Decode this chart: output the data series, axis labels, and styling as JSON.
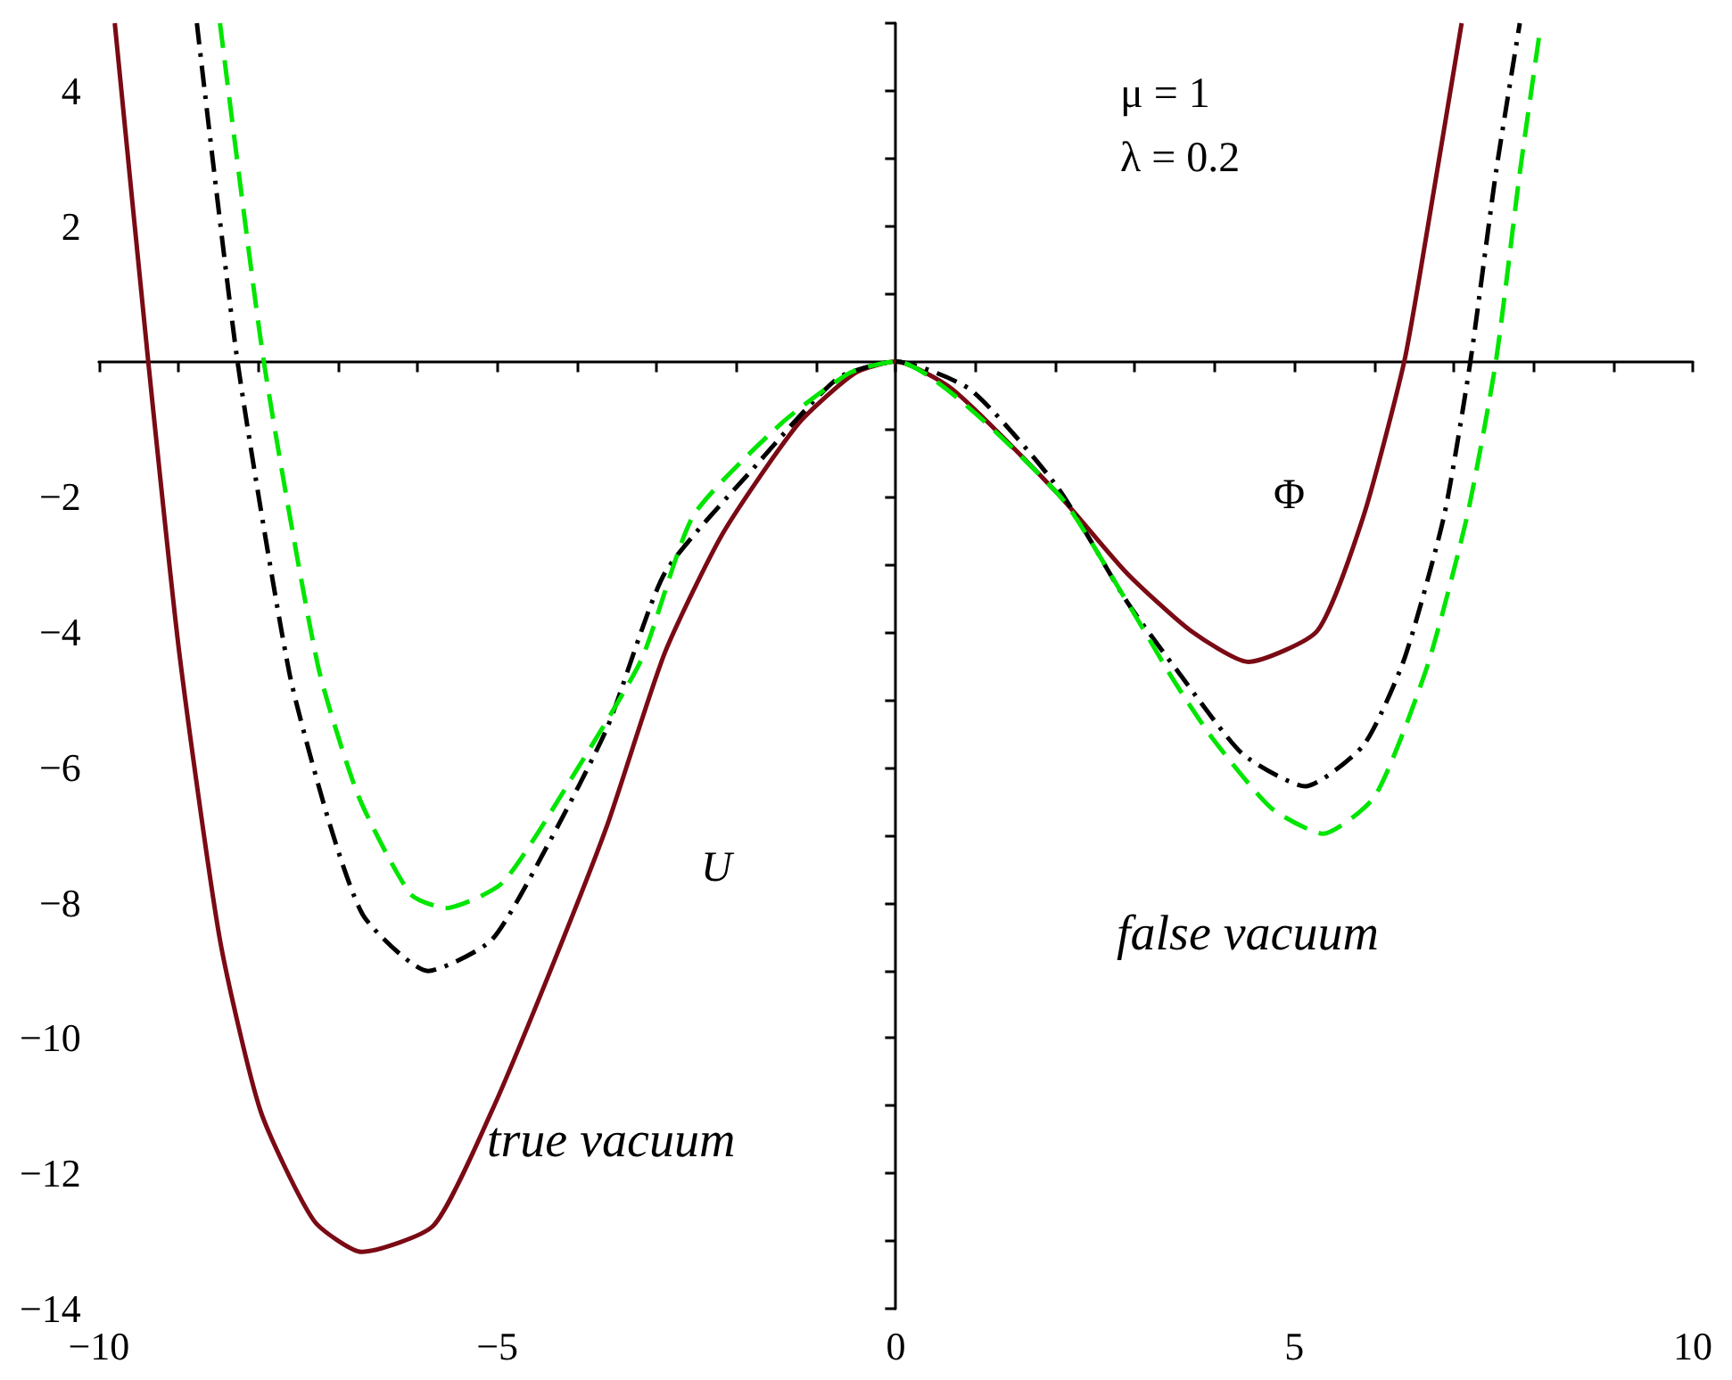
{
  "chart_data": {
    "type": "line",
    "xlabel": "Φ",
    "ylabel": "U",
    "xlim": [
      -10,
      10
    ],
    "ylim": [
      -14,
      5
    ],
    "xticks": [
      {
        "value": -10,
        "label": "−10"
      },
      {
        "value": -9,
        "label": null
      },
      {
        "value": -8,
        "label": null
      },
      {
        "value": -7,
        "label": null
      },
      {
        "value": -6,
        "label": null
      },
      {
        "value": -5,
        "label": "−5"
      },
      {
        "value": -4,
        "label": null
      },
      {
        "value": -3,
        "label": null
      },
      {
        "value": -2,
        "label": null
      },
      {
        "value": -1,
        "label": null
      },
      0,
      {
        "value": 1,
        "label": null
      },
      {
        "value": 2,
        "label": null
      },
      {
        "value": 3,
        "label": null
      },
      {
        "value": 4,
        "label": null
      },
      5,
      {
        "value": 6,
        "label": null
      },
      {
        "value": 7,
        "label": null
      },
      {
        "value": 8,
        "label": null
      },
      {
        "value": 9,
        "label": null
      },
      10
    ],
    "yticks": [
      {
        "value": -14,
        "label": "−14"
      },
      {
        "value": -13,
        "label": null
      },
      {
        "value": -12,
        "label": "−12"
      },
      {
        "value": -11,
        "label": null
      },
      {
        "value": -10,
        "label": "−10"
      },
      {
        "value": -9,
        "label": null
      },
      {
        "value": -8,
        "label": "−8"
      },
      {
        "value": -7,
        "label": null
      },
      {
        "value": -6,
        "label": "−6"
      },
      {
        "value": -5,
        "label": null
      },
      {
        "value": -4,
        "label": "−4"
      },
      {
        "value": -3,
        "label": null
      },
      {
        "value": -2,
        "label": "−2"
      },
      {
        "value": -1,
        "label": null
      },
      {
        "value": 0,
        "label": null
      },
      {
        "value": 1,
        "label": null
      },
      2,
      {
        "value": 3,
        "label": null
      },
      4,
      {
        "value": 5,
        "label": null
      }
    ],
    "marker": "none",
    "annotations": [
      "μ = 1",
      "λ = 0.2",
      "true vacuum",
      "false vacuum"
    ],
    "series": [
      {
        "color": "#7a0a14",
        "line_style": "solid",
        "x": [
          -9.8,
          -9.38,
          -8.99,
          -8.48,
          -7.97,
          -7.3,
          -6.7,
          -5.8,
          -5.07,
          -4.35,
          -3.62,
          -2.9,
          -2.17,
          -1.23,
          -0.51,
          0,
          0.72,
          2.03,
          2.9,
          3.7,
          4.42,
          5.29,
          5.87,
          6.38,
          6.67,
          7.1
        ],
        "values": [
          5,
          0,
          -4.31,
          -8.55,
          -11.08,
          -12.7,
          -13.16,
          -12.77,
          -11.08,
          -9.05,
          -6.85,
          -4.31,
          -2.54,
          -0.93,
          -0.17,
          0,
          -0.42,
          -1.95,
          -3.13,
          -3.98,
          -4.44,
          -3.98,
          -2.28,
          0,
          1.95,
          5
        ]
      },
      {
        "color": "#000000",
        "line_style": "dashdot",
        "x": [
          -8.77,
          -8.26,
          -7.61,
          -7.1,
          -6.67,
          -5.87,
          -5.07,
          -4.35,
          -3.62,
          -2.9,
          -1.81,
          -0.73,
          0,
          0.94,
          2.03,
          2.9,
          3.55,
          4.35,
          5.14,
          5.87,
          6.38,
          6.88,
          7.21,
          7.53,
          7.83
        ],
        "values": [
          5,
          0,
          -4.6,
          -6.85,
          -8.21,
          -9.01,
          -8.55,
          -7.11,
          -5.41,
          -3.13,
          -1.61,
          -0.25,
          0,
          -0.42,
          -1.86,
          -3.55,
          -4.6,
          -5.8,
          -6.28,
          -5.67,
          -4.4,
          -2.28,
          0,
          2.79,
          5
        ]
      },
      {
        "color": "#00e600",
        "line_style": "dashed",
        "x": [
          -8.48,
          -7.93,
          -7.25,
          -6.74,
          -6.09,
          -5.65,
          -4.93,
          -3.99,
          -3.19,
          -2.54,
          -1.45,
          -0.58,
          0,
          2.03,
          2.9,
          3.48,
          3.98,
          4.71,
          5.36,
          6.01,
          6.67,
          7.17,
          7.53,
          7.83,
          8.08
        ],
        "values": [
          5,
          0,
          -4.5,
          -6.43,
          -7.87,
          -8.08,
          -7.7,
          -6.01,
          -4.4,
          -2.28,
          -0.93,
          -0.17,
          0,
          -1.95,
          -3.55,
          -4.7,
          -5.58,
          -6.6,
          -6.98,
          -6.43,
          -4.5,
          -2.28,
          0,
          2.79,
          4.87
        ]
      }
    ]
  }
}
